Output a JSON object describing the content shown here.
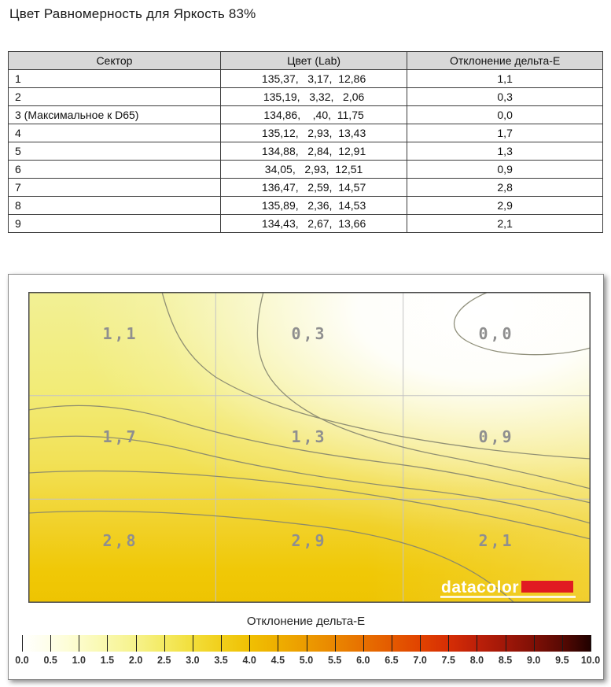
{
  "title": "Цвет Равномерность для Яркость 83%",
  "table": {
    "headers": [
      "Сектор",
      "Цвет (Lab)",
      "Отклонение дельта-E"
    ],
    "rows": [
      {
        "sector": "1",
        "lab": "135,37,   3,17,  12,86",
        "delta": "1,1"
      },
      {
        "sector": "2",
        "lab": "135,19,   3,32,   2,06",
        "delta": "0,3"
      },
      {
        "sector": "3 (Максимальное к D65)",
        "lab": "134,86,    ,40,  11,75",
        "delta": "0,0"
      },
      {
        "sector": "4",
        "lab": "135,12,   2,93,  13,43",
        "delta": "1,7"
      },
      {
        "sector": "5",
        "lab": "134,88,   2,84,  12,91",
        "delta": "1,3"
      },
      {
        "sector": "6",
        "lab": "34,05,   2,93,  12,51",
        "delta": "0,9"
      },
      {
        "sector": "7",
        "lab": "136,47,   2,59,  14,57",
        "delta": "2,8"
      },
      {
        "sector": "8",
        "lab": "135,89,   2,36,  14,53",
        "delta": "2,9"
      },
      {
        "sector": "9",
        "lab": "134,43,   2,67,  13,66",
        "delta": "2,1"
      }
    ]
  },
  "chart_data": {
    "type": "heatmap",
    "title": "Цвет Равномерность для Яркость 83%",
    "rows": 3,
    "cols": 3,
    "cell_values": [
      [
        1.1,
        0.3,
        0.0
      ],
      [
        1.7,
        1.3,
        0.9
      ],
      [
        2.8,
        2.9,
        2.1
      ]
    ],
    "cell_labels": [
      [
        "1,1",
        "0,3",
        "0,0"
      ],
      [
        "1,7",
        "1,3",
        "0,9"
      ],
      [
        "2,8",
        "2,9",
        "2,1"
      ]
    ],
    "layout": {
      "grid_lines": "3x3",
      "contour_lines": true,
      "colorbar_position": "bottom"
    },
    "field_colors": {
      "top_left": "#f2f095",
      "bottom": "#eec402",
      "highlight": "#ffffff",
      "contour": "#85856e",
      "grid": "#c4c4c4",
      "label": "#8f8f8f"
    },
    "colorbar": {
      "label": "Отклонение дельта-E",
      "min": 0.0,
      "max": 10.0,
      "tick_step": 0.5,
      "ticks": [
        "0.0",
        "0.5",
        "1.0",
        "1.5",
        "2.0",
        "2.5",
        "3.0",
        "3.5",
        "4.0",
        "4.5",
        "5.0",
        "5.5",
        "6.0",
        "6.5",
        "7.0",
        "7.5",
        "8.0",
        "8.5",
        "9.0",
        "9.5",
        "10.0"
      ],
      "gradient": [
        [
          "0%",
          "#ffffff"
        ],
        [
          "5%",
          "#fefee8"
        ],
        [
          "10%",
          "#fcfccb"
        ],
        [
          "15%",
          "#f9f8ab"
        ],
        [
          "20%",
          "#f6f28b"
        ],
        [
          "25%",
          "#f4ea62"
        ],
        [
          "30%",
          "#f2de3a"
        ],
        [
          "35%",
          "#f1cf1b"
        ],
        [
          "40%",
          "#f0c003"
        ],
        [
          "45%",
          "#eeae00"
        ],
        [
          "50%",
          "#ec9b00"
        ],
        [
          "55%",
          "#ea8600"
        ],
        [
          "60%",
          "#e77000"
        ],
        [
          "65%",
          "#e45a00"
        ],
        [
          "70%",
          "#e14300"
        ],
        [
          "75%",
          "#d62e05"
        ],
        [
          "80%",
          "#bd2009"
        ],
        [
          "85%",
          "#a01708"
        ],
        [
          "90%",
          "#7f1006"
        ],
        [
          "95%",
          "#580903"
        ],
        [
          "100%",
          "#200100"
        ]
      ]
    }
  },
  "logo": {
    "text": "datacolor",
    "bar_color": "#e11b22",
    "text_color": "#ffffff"
  }
}
